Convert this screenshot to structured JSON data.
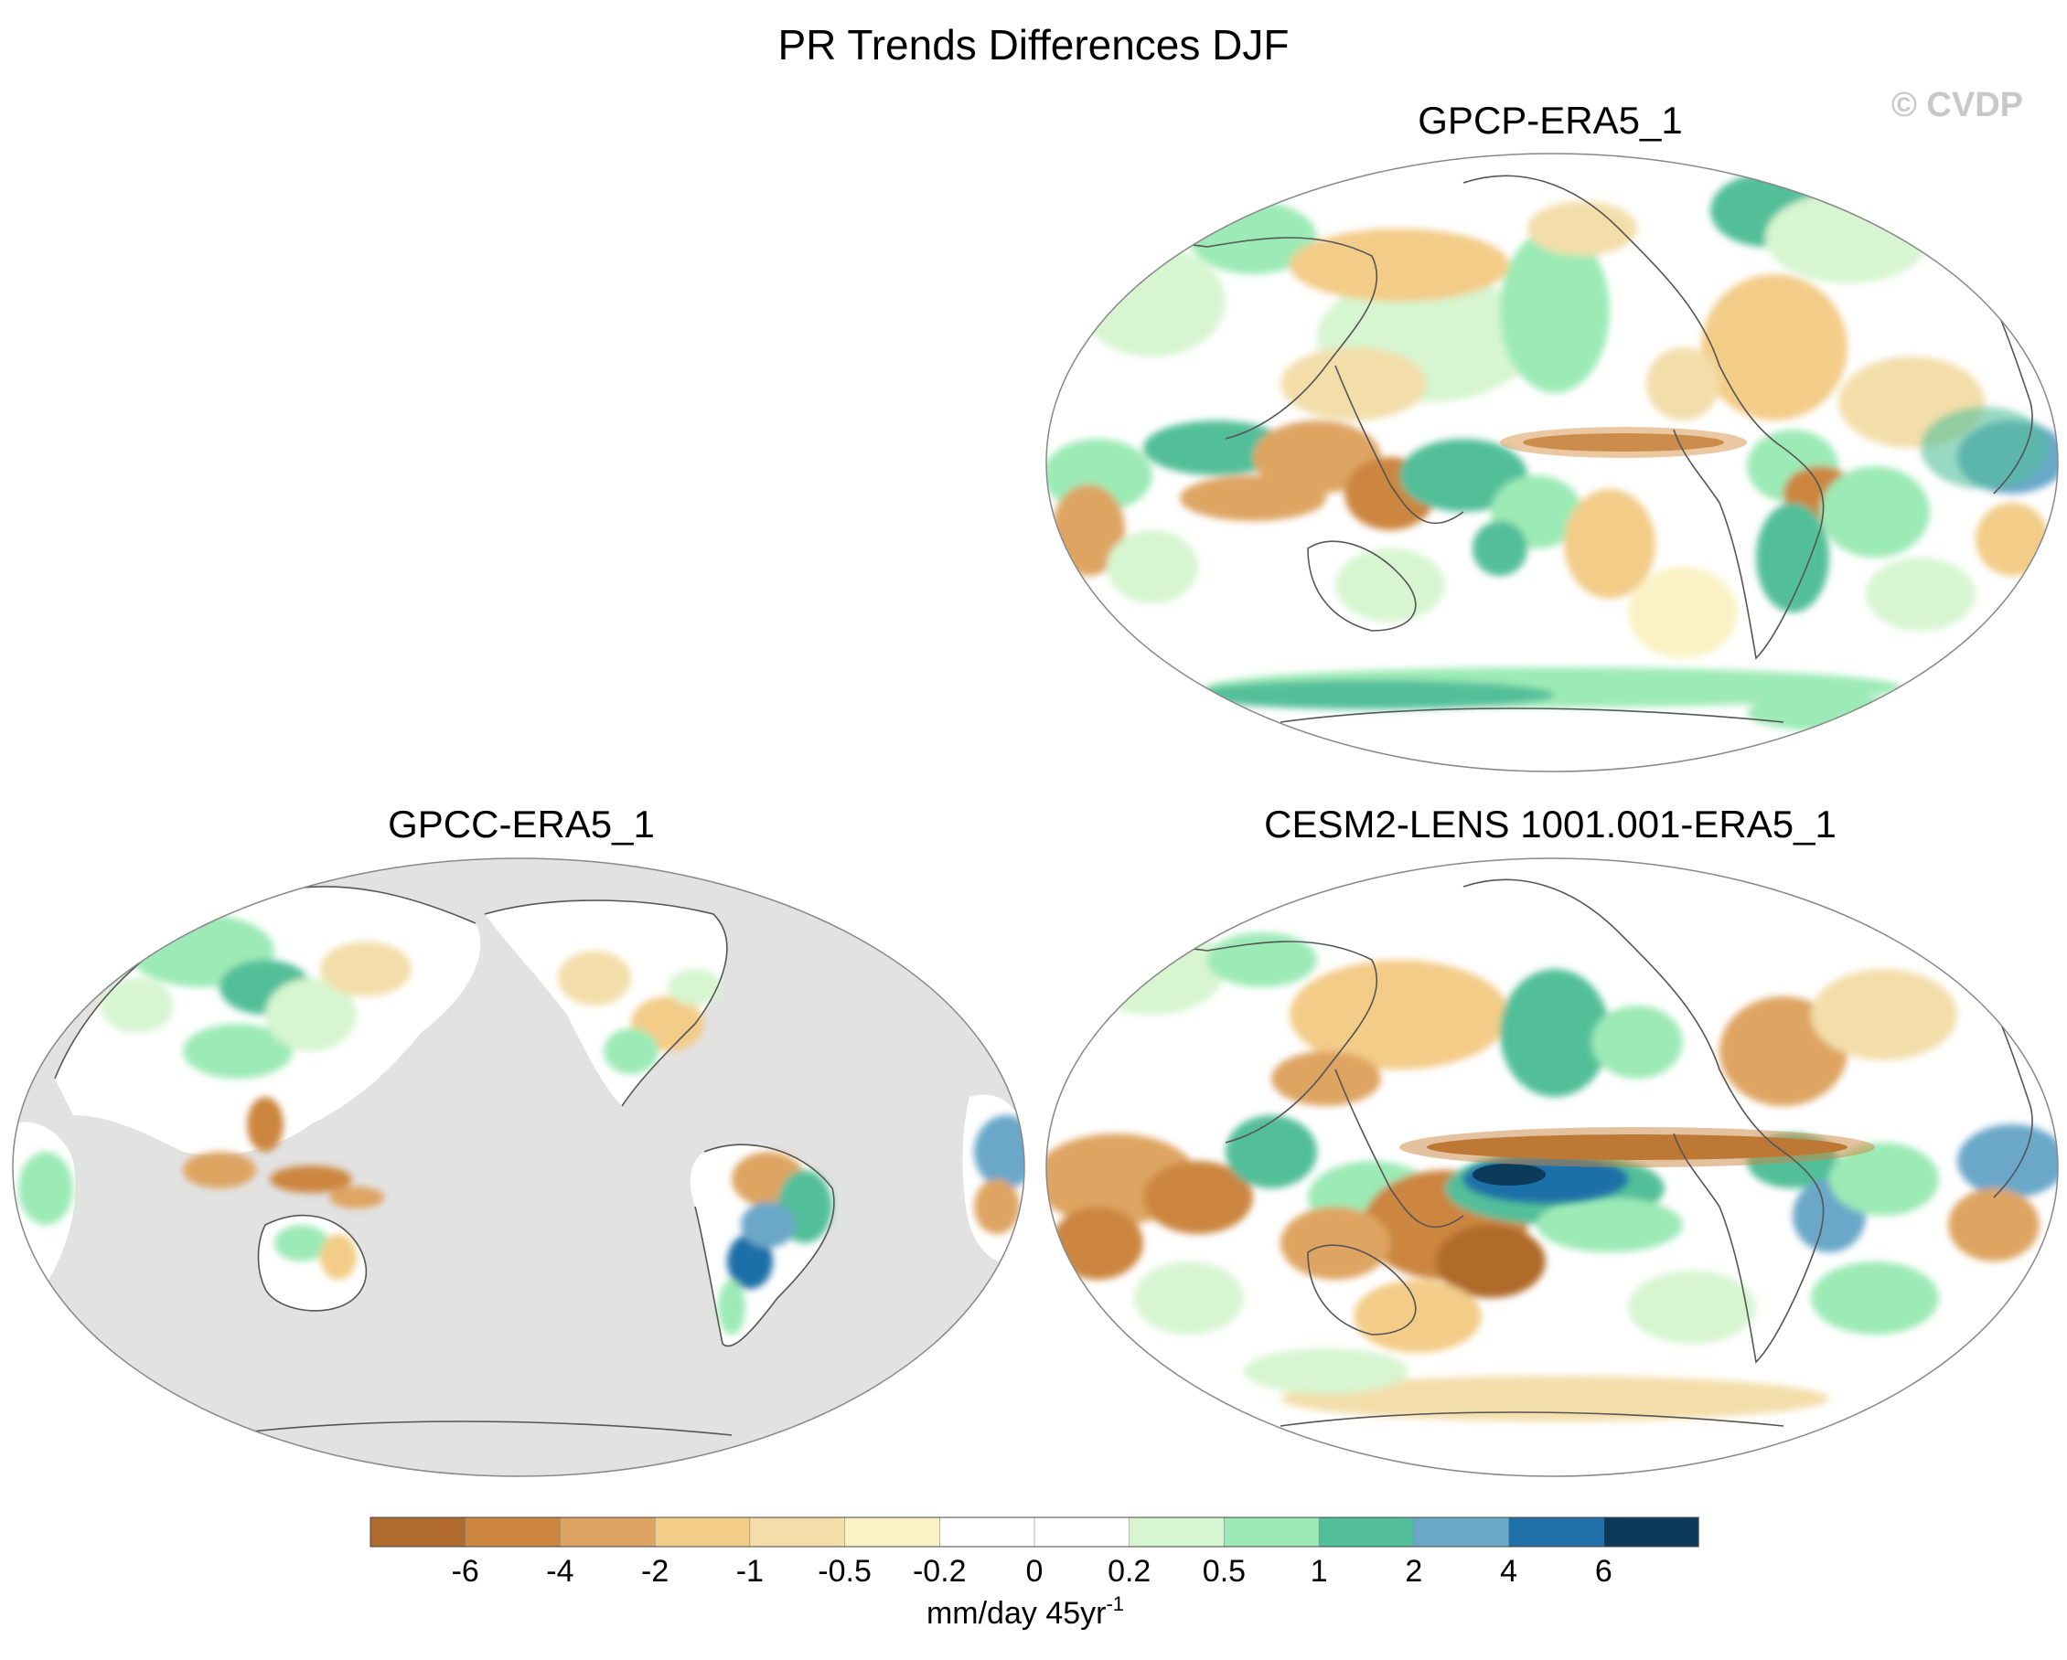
{
  "title": "PR Trends Differences DJF",
  "watermark": "© CVDP",
  "colors": {
    "land_mask": "#e2e2e2",
    "ocean_white": "#ffffff",
    "coast": "#555555"
  },
  "chart_data": {
    "type": "heatmap",
    "projection": "Robinson (Pacific-centered)",
    "panels": [
      {
        "id": "gpcp",
        "title": "GPCP-ERA5_1",
        "position": "top-right",
        "coverage": "global"
      },
      {
        "id": "gpcc",
        "title": "GPCC-ERA5_1",
        "position": "bottom-left",
        "coverage": "land-only"
      },
      {
        "id": "cesm",
        "title": "CESM2-LENS 1001.001-ERA5_1",
        "position": "bottom-right",
        "coverage": "global"
      }
    ],
    "colorbar": {
      "orientation": "horizontal",
      "unit_main": "mm/day 45yr",
      "unit_sup": "-1",
      "tick_labels": [
        "-6",
        "-4",
        "-2",
        "-1",
        "-0.5",
        "-0.2",
        "0",
        "0.2",
        "0.5",
        "1",
        "2",
        "4",
        "6"
      ],
      "colors": [
        "#b06a2c",
        "#cc8640",
        "#dea462",
        "#f3cc88",
        "#f3deaa",
        "#faf2c4",
        "#ffffff",
        "#ffffff",
        "#d6f5d0",
        "#9ceab6",
        "#52bf9a",
        "#6aa7c9",
        "#1f6fa8",
        "#0b3a5a"
      ]
    }
  }
}
